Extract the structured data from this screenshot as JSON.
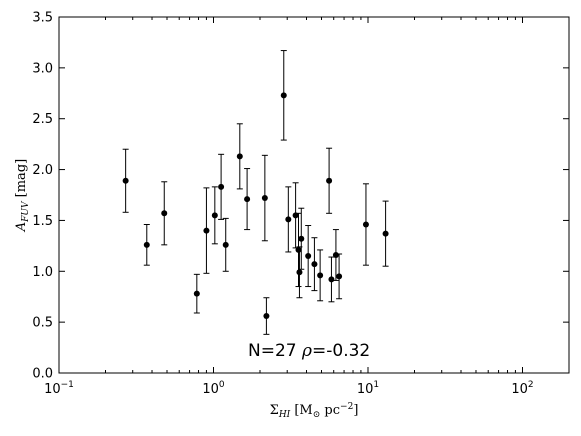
{
  "chart_data": {
    "type": "scatter",
    "x_scale": "log",
    "xlim": [
      0.1,
      200
    ],
    "ylim": [
      0.0,
      3.5
    ],
    "x_ticks": [
      {
        "value": 0.1,
        "base": "10",
        "exp": "−1"
      },
      {
        "value": 1,
        "base": "10",
        "exp": "0"
      },
      {
        "value": 10,
        "base": "10",
        "exp": "1"
      },
      {
        "value": 100,
        "base": "10",
        "exp": "2"
      }
    ],
    "y_ticks": [
      "0.0",
      "0.5",
      "1.0",
      "1.5",
      "2.0",
      "2.5",
      "3.0",
      "3.5"
    ],
    "xlabel": {
      "symbol": "Σ",
      "sub": "HI",
      "unit_open": " [M",
      "sun": "⊙",
      "unit_mid": " pc",
      "exp": "−2",
      "unit_close": "]"
    },
    "ylabel": {
      "symbol": "A",
      "sub": "FUV",
      "unit": " [mag]"
    },
    "annotation": {
      "n_text": "N=27 ",
      "rho_symbol": "ρ",
      "rho_text": "=-0.32"
    },
    "grid": false,
    "marker_color": "#000000",
    "points": [
      {
        "x": 0.27,
        "y": 1.89,
        "err": 0.31
      },
      {
        "x": 0.37,
        "y": 1.26,
        "err": 0.2
      },
      {
        "x": 0.48,
        "y": 1.57,
        "err": 0.31
      },
      {
        "x": 0.78,
        "y": 0.78,
        "err": 0.19
      },
      {
        "x": 0.9,
        "y": 1.4,
        "err": 0.42
      },
      {
        "x": 1.02,
        "y": 1.55,
        "err": 0.28
      },
      {
        "x": 1.12,
        "y": 1.83,
        "err": 0.32
      },
      {
        "x": 1.2,
        "y": 1.26,
        "err": 0.26
      },
      {
        "x": 1.48,
        "y": 2.13,
        "err": 0.32
      },
      {
        "x": 1.65,
        "y": 1.71,
        "err": 0.3
      },
      {
        "x": 2.15,
        "y": 1.72,
        "err": 0.42
      },
      {
        "x": 2.2,
        "y": 0.56,
        "err": 0.18
      },
      {
        "x": 2.85,
        "y": 2.73,
        "err": 0.44
      },
      {
        "x": 3.05,
        "y": 1.51,
        "err": 0.32
      },
      {
        "x": 3.4,
        "y": 1.55,
        "err": 0.32
      },
      {
        "x": 3.55,
        "y": 1.21,
        "err": 0.36
      },
      {
        "x": 3.6,
        "y": 0.99,
        "err": 0.25
      },
      {
        "x": 3.7,
        "y": 1.32,
        "err": 0.3
      },
      {
        "x": 4.1,
        "y": 1.15,
        "err": 0.3
      },
      {
        "x": 4.5,
        "y": 1.07,
        "err": 0.26
      },
      {
        "x": 4.9,
        "y": 0.96,
        "err": 0.25
      },
      {
        "x": 5.6,
        "y": 1.89,
        "err": 0.32
      },
      {
        "x": 5.8,
        "y": 0.92,
        "err": 0.22
      },
      {
        "x": 6.2,
        "y": 1.16,
        "err": 0.25
      },
      {
        "x": 6.5,
        "y": 0.95,
        "err": 0.22
      },
      {
        "x": 9.7,
        "y": 1.46,
        "err": 0.4
      },
      {
        "x": 13.0,
        "y": 1.37,
        "err": 0.32
      }
    ]
  }
}
